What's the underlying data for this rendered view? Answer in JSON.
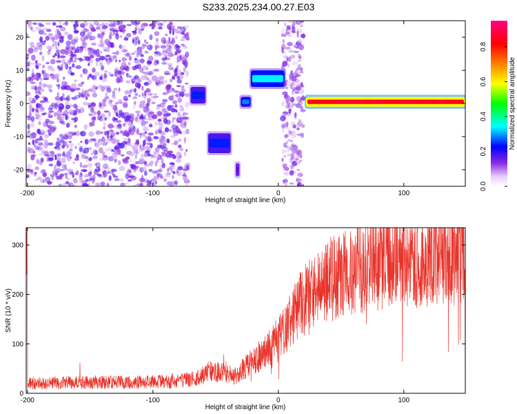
{
  "title": "S233.2025.234.00.27.E03",
  "chart_data": [
    {
      "type": "heatmap",
      "xlabel": "Height of straight line (km)",
      "ylabel": "Frequency (Hz)",
      "xlim": [
        -201,
        149
      ],
      "ylim": [
        -25,
        25
      ],
      "x_ticks": [
        -200,
        -100,
        0,
        100
      ],
      "y_ticks": [
        -20,
        -10,
        0,
        10,
        20
      ],
      "colorbar": {
        "label": "Normalized spectral amplitude",
        "range": [
          0,
          0.95
        ],
        "ticks": [
          0.0,
          0.2,
          0.4,
          0.6,
          0.8
        ],
        "tick_labels": [
          "0.0",
          "0.2",
          "0.4",
          "0.6",
          "0.8"
        ],
        "colors": [
          "#ffffff",
          "#8a2be2",
          "#0000ff",
          "#00ffff",
          "#00ff00",
          "#ffff00",
          "#ff8000",
          "#ff0000",
          "#ff0080"
        ]
      },
      "features": [
        {
          "x": [
            -201,
            -72
          ],
          "freq": [
            -25,
            25
          ],
          "amplitude": 0.1,
          "kind": "noise"
        },
        {
          "x": [
            -70,
            -58
          ],
          "freq": [
            0,
            5
          ],
          "amplitude": 0.25,
          "kind": "band"
        },
        {
          "x": [
            -56,
            -38
          ],
          "freq": [
            -15,
            -9
          ],
          "amplitude": 0.25,
          "kind": "band"
        },
        {
          "x": [
            -34,
            -31
          ],
          "freq": [
            -22,
            -18
          ],
          "amplitude": 0.2,
          "kind": "band"
        },
        {
          "x": [
            -30,
            -22
          ],
          "freq": [
            -1,
            2
          ],
          "amplitude": 0.3,
          "kind": "band"
        },
        {
          "x": [
            -22,
            5
          ],
          "freq": [
            5,
            10
          ],
          "amplitude": 0.35,
          "kind": "band"
        },
        {
          "x": [
            3,
            20
          ],
          "freq": [
            -25,
            25
          ],
          "amplitude": 0.08,
          "kind": "noise"
        },
        {
          "x": [
            22,
            149
          ],
          "freq": [
            -1,
            2
          ],
          "amplitude": 0.85,
          "kind": "band"
        }
      ]
    },
    {
      "type": "line",
      "xlabel": "Height of straight line (km)",
      "ylabel": "SNR (10 * v/v)",
      "xlim": [
        -201,
        149
      ],
      "ylim": [
        0,
        335
      ],
      "x_ticks": [
        -200,
        -100,
        0,
        100
      ],
      "y_ticks": [
        0,
        100,
        200,
        300
      ],
      "series": [
        {
          "color": "#e8332a",
          "x": [
            -200,
            -180,
            -160,
            -140,
            -120,
            -100,
            -80,
            -65,
            -55,
            -45,
            -35,
            -25,
            -15,
            -5,
            5,
            15,
            25,
            35,
            45,
            55,
            65,
            75,
            85,
            95,
            105,
            115,
            125,
            135,
            149
          ],
          "values": [
            20,
            21,
            22,
            22,
            22,
            23,
            24,
            30,
            45,
            42,
            35,
            55,
            75,
            95,
            130,
            170,
            200,
            225,
            235,
            245,
            255,
            262,
            265,
            270,
            272,
            275,
            278,
            280,
            282
          ]
        }
      ]
    }
  ]
}
